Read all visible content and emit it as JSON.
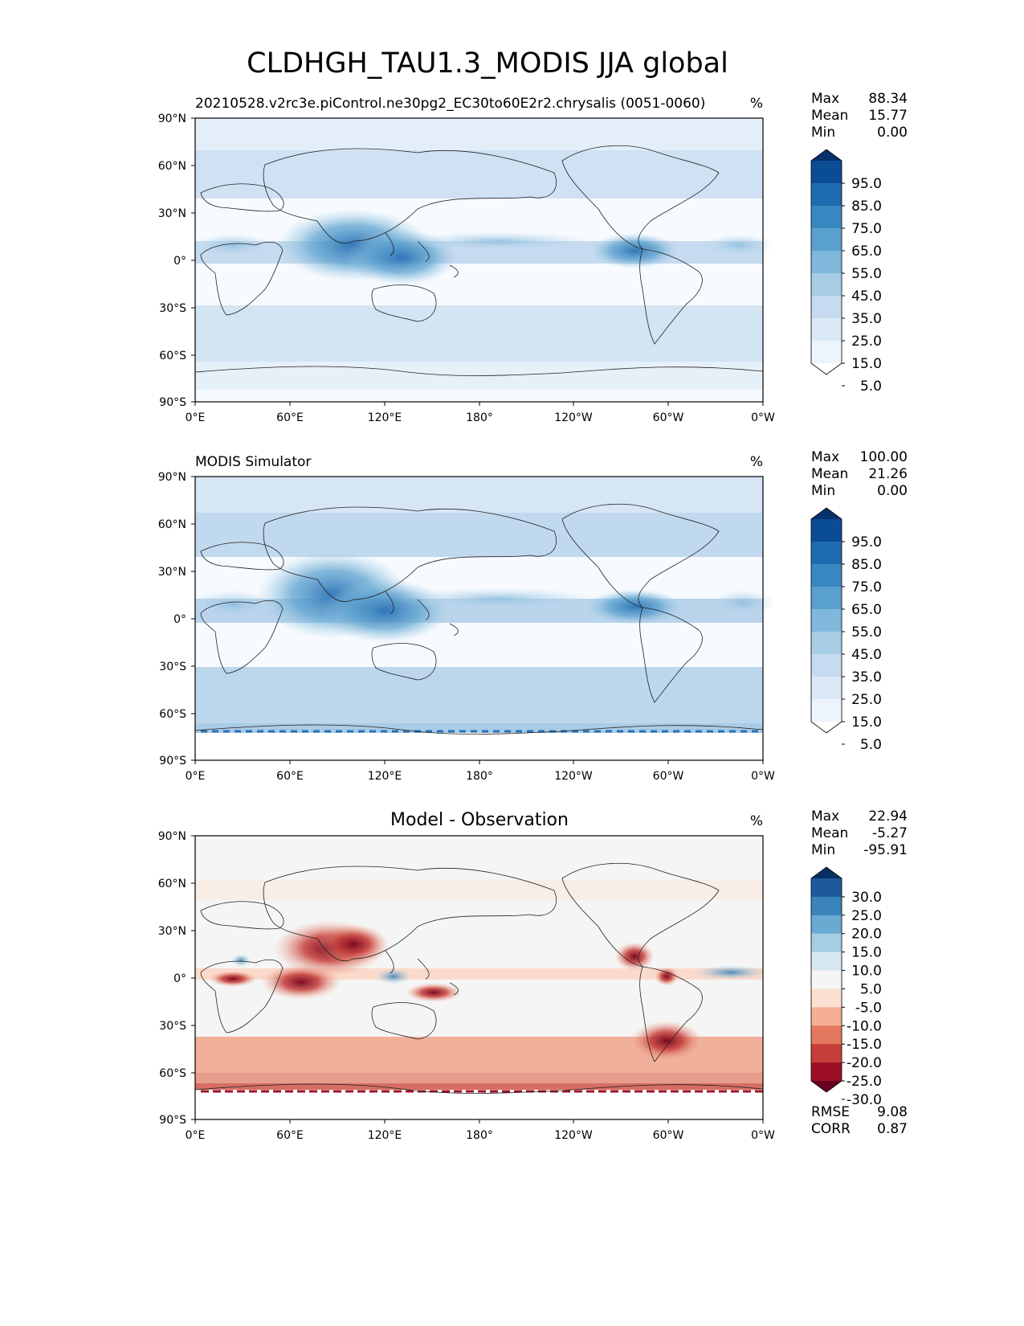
{
  "figure": {
    "title": "CLDHGH_TAU1.3_MODIS JJA global"
  },
  "axes": {
    "lat_ticks": [
      "90°N",
      "60°N",
      "30°N",
      "0°",
      "30°S",
      "60°S",
      "90°S"
    ],
    "lon_ticks": [
      "0°E",
      "60°E",
      "120°E",
      "180°",
      "120°W",
      "60°W",
      "0°W"
    ]
  },
  "panels": [
    {
      "id": "test",
      "left_title": "20210528.v2rc3e.piControl.ne30pg2_EC30to60E2r2.chrysalis (0051-0060)",
      "center_title": "",
      "units": "%",
      "stats": [
        {
          "label": "Max",
          "value": "88.34"
        },
        {
          "label": "Mean",
          "value": "15.77"
        },
        {
          "label": "Min",
          "value": "0.00"
        }
      ],
      "colorbar": {
        "labels": [
          "95.0",
          "85.0",
          "75.0",
          "65.0",
          "55.0",
          "45.0",
          "35.0",
          "25.0",
          "15.0",
          "5.0"
        ],
        "colors": [
          "#08306b",
          "#0b4d95",
          "#1f6bb0",
          "#3987c0",
          "#5aa0ce",
          "#7fb8da",
          "#a7cde4",
          "#c6dbef",
          "#dbe9f6",
          "#edf4fb",
          "#ffffff"
        ]
      }
    },
    {
      "id": "reference",
      "left_title": "MODIS Simulator",
      "center_title": "",
      "units": "%",
      "stats": [
        {
          "label": "Max",
          "value": "100.00"
        },
        {
          "label": "Mean",
          "value": "21.26"
        },
        {
          "label": "Min",
          "value": "0.00"
        }
      ],
      "colorbar": {
        "labels": [
          "95.0",
          "85.0",
          "75.0",
          "65.0",
          "55.0",
          "45.0",
          "35.0",
          "25.0",
          "15.0",
          "5.0"
        ],
        "colors": [
          "#08306b",
          "#0b4d95",
          "#1f6bb0",
          "#3987c0",
          "#5aa0ce",
          "#7fb8da",
          "#a7cde4",
          "#c6dbef",
          "#dbe9f6",
          "#edf4fb",
          "#ffffff"
        ]
      }
    },
    {
      "id": "difference",
      "left_title": "",
      "center_title": "Model - Observation",
      "units": "%",
      "stats": [
        {
          "label": "Max",
          "value": "22.94"
        },
        {
          "label": "Mean",
          "value": "-5.27"
        },
        {
          "label": "Min",
          "value": "-95.91"
        }
      ],
      "metrics": [
        {
          "label": "RMSE",
          "value": "9.08"
        },
        {
          "label": "CORR",
          "value": "0.87"
        }
      ],
      "colorbar": {
        "labels": [
          "30.0",
          "25.0",
          "20.0",
          "15.0",
          "10.0",
          "5.0",
          "-5.0",
          "-10.0",
          "-15.0",
          "-20.0",
          "-25.0",
          "-30.0"
        ],
        "colors": [
          "#053061",
          "#1c5a9c",
          "#3a83bb",
          "#6aaad2",
          "#a5cde3",
          "#d6e7f1",
          "#f5f5f5",
          "#fbe0d1",
          "#f5b094",
          "#e3785f",
          "#c53e3a",
          "#9e0f26",
          "#67001f"
        ]
      }
    }
  ]
}
